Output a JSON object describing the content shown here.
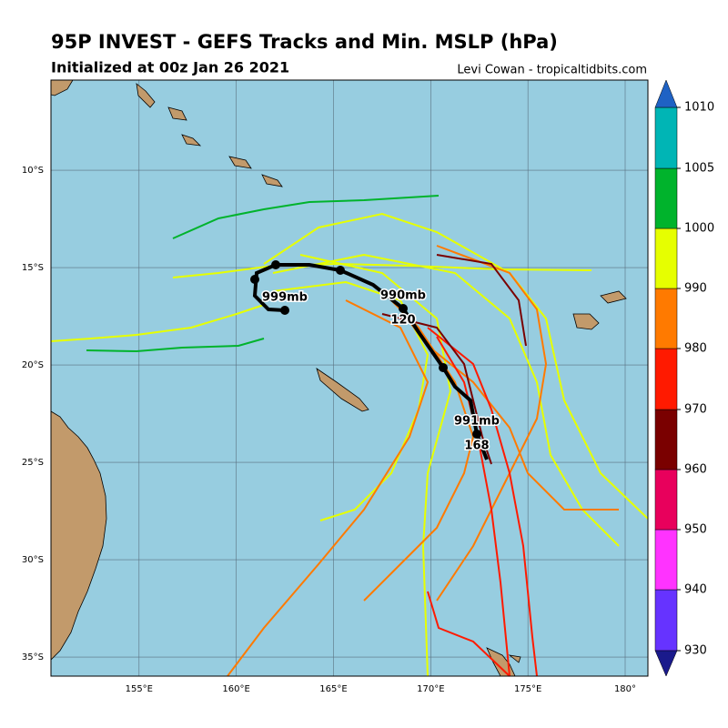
{
  "header": {
    "title": "95P INVEST - GEFS Tracks and Min. MSLP (hPa)",
    "subtitle": "Initialized at 00z Jan 26 2021",
    "credit": "Levi Cowan - tropicaltidbits.com"
  },
  "map": {
    "xlim": [
      150.47,
      181.17
    ],
    "ylim": [
      -5.37,
      -35.98
    ],
    "lat_ticks": [
      {
        "value": -10,
        "label": "10°S"
      },
      {
        "value": -15,
        "label": "15°S"
      },
      {
        "value": -20,
        "label": "20°S"
      },
      {
        "value": -25,
        "label": "25°S"
      },
      {
        "value": -30,
        "label": "30°S"
      },
      {
        "value": -35,
        "label": "35°S"
      }
    ],
    "lon_ticks": [
      {
        "value": 155,
        "label": "155°E"
      },
      {
        "value": 160,
        "label": "160°E"
      },
      {
        "value": 165,
        "label": "165°E"
      },
      {
        "value": 170,
        "label": "170°E"
      },
      {
        "value": 175,
        "label": "175°E"
      },
      {
        "value": 180,
        "label": "180°"
      }
    ],
    "annotations": [
      "999mb",
      "990mb",
      "120",
      "991mb",
      "168"
    ]
  },
  "colorbar": {
    "ticks": [
      930,
      940,
      950,
      960,
      970,
      980,
      990,
      1000,
      1005,
      1010
    ],
    "colors": [
      "#6633ff",
      "#ff33ff",
      "#e8005c",
      "#7a0000",
      "#ff1a00",
      "#ff7a00",
      "#e6ff00",
      "#00b32c",
      "#00b5b5"
    ],
    "under": "#1a1a8c",
    "over": "#1f62c4"
  }
}
